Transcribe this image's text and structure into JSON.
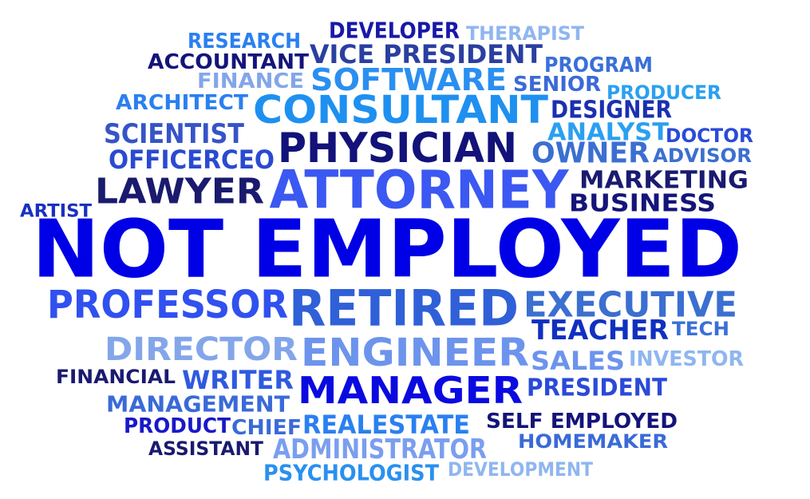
{
  "words": [
    {
      "text": "NOT EMPLOYED",
      "color": "#0000e6"
    },
    {
      "text": "ATTORNEY",
      "color": "#3b58f2"
    },
    {
      "text": "PHYSICIAN",
      "color": "#12127a"
    },
    {
      "text": "CONSULTANT",
      "color": "#1e90f0"
    },
    {
      "text": "RETIRED",
      "color": "#3060d8"
    },
    {
      "text": "MANAGER",
      "color": "#0a0ae0"
    },
    {
      "text": "ENGINEER",
      "color": "#6d94ec"
    },
    {
      "text": "SOFTWARE",
      "color": "#2a8ff0"
    },
    {
      "text": "EXECUTIVE",
      "color": "#3b6fd0"
    },
    {
      "text": "PROFESSOR",
      "color": "#3050f0"
    },
    {
      "text": "DIRECTOR",
      "color": "#83a6ea"
    },
    {
      "text": "LAWYER",
      "color": "#1a1a6e"
    },
    {
      "text": "VICE PRESIDENT",
      "color": "#2a3fa0"
    },
    {
      "text": "TEACHER",
      "color": "#1030c0"
    },
    {
      "text": "OWNER",
      "color": "#3b6fd0"
    },
    {
      "text": "MARKETING",
      "color": "#1a1a70"
    },
    {
      "text": "BUSINESS",
      "color": "#14147a"
    },
    {
      "text": "SCIENTIST",
      "color": "#3654c8"
    },
    {
      "text": "ANALYST",
      "color": "#2aa0f0"
    },
    {
      "text": "DESIGNER",
      "color": "#1a30b0"
    },
    {
      "text": "OFFICERCEO",
      "color": "#2a4ad0"
    },
    {
      "text": "ADMINISTRATOR",
      "color": "#7a9ef0"
    },
    {
      "text": "REALESTATE",
      "color": "#2a80f0"
    },
    {
      "text": "WRITER",
      "color": "#2f5ae0"
    },
    {
      "text": "SALES",
      "color": "#6d94ec"
    },
    {
      "text": "PRESIDENT",
      "color": "#2a4ad8"
    },
    {
      "text": "MANAGEMENT",
      "color": "#3a6ad8"
    },
    {
      "text": "DEVELOPER",
      "color": "#1818a8"
    },
    {
      "text": "ACCOUNTANT",
      "color": "#14147a"
    },
    {
      "text": "FINANCE",
      "color": "#83a6ea"
    },
    {
      "text": "ARCHITECT",
      "color": "#2a80f0"
    },
    {
      "text": "RESEARCH",
      "color": "#2a80f0"
    },
    {
      "text": "THERAPIST",
      "color": "#8fb6f0"
    },
    {
      "text": "PROGRAM",
      "color": "#3a70d8"
    },
    {
      "text": "SENIOR",
      "color": "#3a6ad8"
    },
    {
      "text": "PRODUCER",
      "color": "#2aa0f0"
    },
    {
      "text": "DOCTOR",
      "color": "#2a4ad8"
    },
    {
      "text": "ADVISOR",
      "color": "#3b6fd0"
    },
    {
      "text": "ARTIST",
      "color": "#1a30c0"
    },
    {
      "text": "TECH",
      "color": "#3a70d8"
    },
    {
      "text": "INVESTOR",
      "color": "#8fb6f0"
    },
    {
      "text": "FINANCIAL",
      "color": "#1a1a70"
    },
    {
      "text": "PRODUCT",
      "color": "#1818c8"
    },
    {
      "text": "CHIEF",
      "color": "#3a6ad8"
    },
    {
      "text": "SELF EMPLOYED",
      "color": "#14147a"
    },
    {
      "text": "HOMEMAKER",
      "color": "#3a6ad8"
    },
    {
      "text": "ASSISTANT",
      "color": "#1a1a70"
    },
    {
      "text": "PSYCHOLOGIST",
      "color": "#2a90f0"
    },
    {
      "text": "DEVELOPMENT",
      "color": "#8fb6f0"
    }
  ]
}
